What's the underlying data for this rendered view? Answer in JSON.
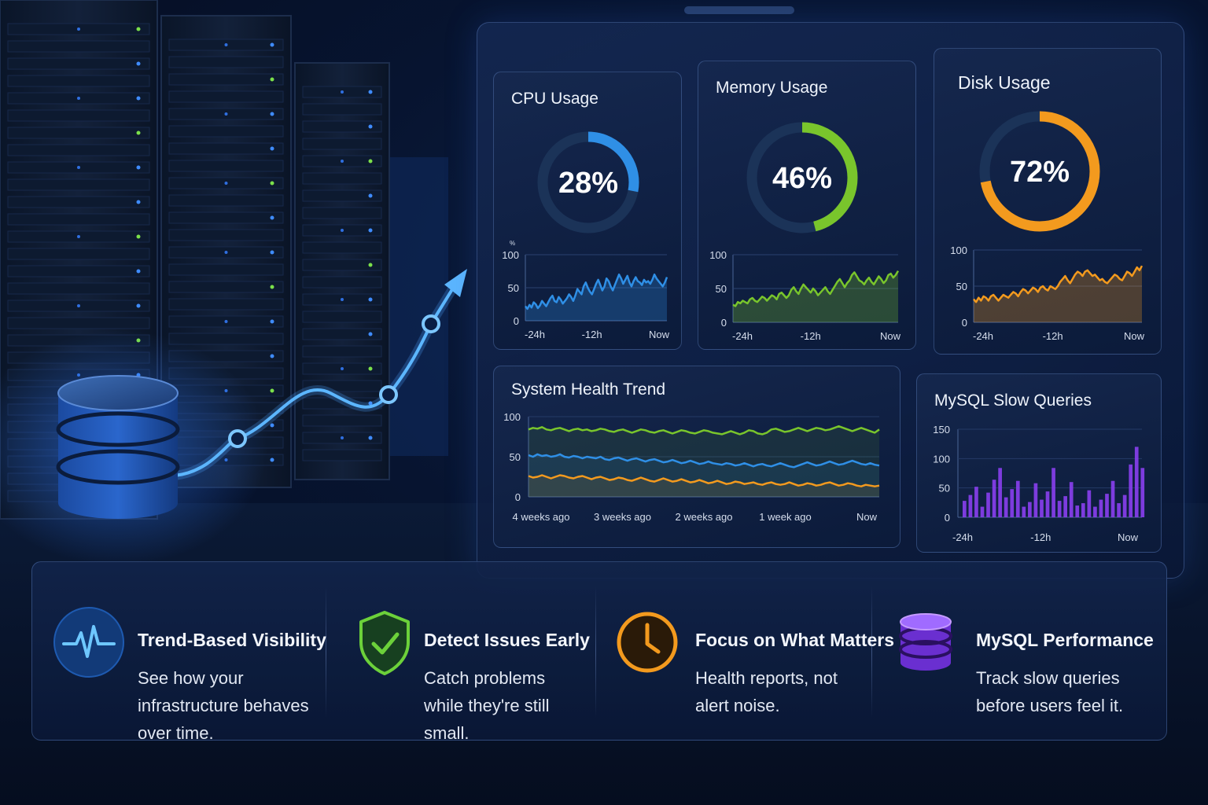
{
  "colors": {
    "cpu": "#2f8fe6",
    "memory": "#79c52c",
    "disk": "#f39a1e",
    "slow_queries": "#8a3ff0",
    "track": "#1b3358"
  },
  "gauges": [
    {
      "id": "cpu",
      "title": "CPU Usage",
      "value_label": "28%",
      "fraction": 0.28,
      "y_ticks": [
        "100",
        "50",
        "0"
      ],
      "x_ticks": [
        "-24h",
        "-12h",
        "Now"
      ],
      "unit_tick": "%",
      "series": [
        22,
        18,
        24,
        20,
        28,
        25,
        19,
        23,
        30,
        26,
        22,
        28,
        34,
        38,
        30,
        28,
        36,
        32,
        26,
        30,
        34,
        40,
        36,
        30,
        38,
        48,
        44,
        40,
        52,
        58,
        50,
        44,
        40,
        48,
        56,
        62,
        54,
        46,
        52,
        64,
        60,
        52,
        46,
        54,
        62,
        70,
        64,
        56,
        62,
        68,
        58,
        52,
        60,
        66,
        60,
        58,
        54,
        62,
        58,
        60,
        56,
        62,
        70,
        64,
        60,
        56,
        52,
        58,
        66
      ]
    },
    {
      "id": "memory",
      "title": "Memory Usage",
      "value_label": "46%",
      "fraction": 0.46,
      "y_ticks": [
        "100",
        "50",
        "0"
      ],
      "x_ticks": [
        "-24h",
        "-12h",
        "Now"
      ],
      "series": [
        26,
        24,
        30,
        28,
        32,
        30,
        28,
        34,
        36,
        32,
        30,
        34,
        38,
        36,
        32,
        36,
        40,
        38,
        34,
        42,
        44,
        40,
        36,
        40,
        48,
        52,
        46,
        42,
        50,
        56,
        52,
        48,
        44,
        50,
        46,
        40,
        44,
        48,
        52,
        46,
        42,
        48,
        54,
        60,
        64,
        58,
        52,
        58,
        62,
        70,
        74,
        68,
        62,
        60,
        56,
        62,
        66,
        60,
        56,
        62,
        68,
        64,
        58,
        62,
        70,
        72,
        66,
        70,
        76
      ]
    },
    {
      "id": "disk",
      "title": "Disk Usage",
      "value_label": "72%",
      "fraction": 0.72,
      "y_ticks": [
        "100",
        "50",
        "0"
      ],
      "x_ticks": [
        "-24h",
        "-12h",
        "Now"
      ],
      "series": [
        32,
        28,
        34,
        30,
        36,
        34,
        30,
        36,
        38,
        34,
        30,
        34,
        38,
        36,
        34,
        38,
        42,
        40,
        36,
        42,
        46,
        44,
        40,
        44,
        48,
        46,
        42,
        48,
        50,
        46,
        44,
        50,
        48,
        46,
        50,
        56,
        60,
        64,
        58,
        54,
        60,
        66,
        70,
        68,
        64,
        70,
        72,
        68,
        64,
        66,
        62,
        58,
        60,
        56,
        54,
        58,
        62,
        66,
        64,
        60,
        58,
        64,
        70,
        68,
        64,
        70,
        76,
        72,
        78
      ]
    },
    {
      "id": "slow",
      "title": "MySQL Slow Queries",
      "y_ticks": [
        "150",
        "100",
        "50",
        "0"
      ],
      "x_ticks": [
        "-24h",
        "-12h",
        "Now"
      ]
    }
  ],
  "system_health": {
    "title": "System Health Trend",
    "y_ticks": [
      "100",
      "50",
      "0"
    ],
    "x_ticks": [
      "4 weeks ago",
      "3 weeks ago",
      "2 weeks ago",
      "1 week ago",
      "Now"
    ],
    "series_green": [
      84,
      86,
      85,
      87,
      84,
      83,
      85,
      86,
      84,
      82,
      84,
      85,
      83,
      84,
      82,
      83,
      85,
      84,
      82,
      81,
      83,
      84,
      82,
      80,
      82,
      84,
      83,
      81,
      80,
      82,
      83,
      81,
      79,
      81,
      83,
      82,
      80,
      79,
      81,
      83,
      82,
      80,
      79,
      78,
      80,
      82,
      80,
      78,
      80,
      83,
      82,
      79,
      78,
      80,
      84,
      85,
      83,
      81,
      82,
      84,
      86,
      84,
      82,
      84,
      86,
      85,
      83,
      84,
      86,
      88,
      86,
      84,
      82,
      84,
      86,
      84,
      82,
      80,
      84
    ],
    "series_blue": [
      52,
      50,
      53,
      51,
      52,
      50,
      51,
      53,
      50,
      49,
      51,
      50,
      48,
      50,
      49,
      48,
      50,
      47,
      46,
      48,
      49,
      47,
      45,
      47,
      48,
      46,
      44,
      46,
      47,
      45,
      43,
      44,
      46,
      44,
      42,
      43,
      45,
      43,
      41,
      42,
      44,
      42,
      41,
      40,
      42,
      41,
      39,
      40,
      42,
      40,
      38,
      40,
      41,
      39,
      38,
      40,
      42,
      40,
      38,
      37,
      39,
      41,
      43,
      41,
      39,
      40,
      42,
      44,
      42,
      40,
      41,
      43,
      45,
      43,
      41,
      40,
      42,
      40,
      39
    ],
    "series_orange": [
      26,
      24,
      25,
      27,
      25,
      23,
      25,
      27,
      26,
      24,
      23,
      25,
      26,
      24,
      22,
      24,
      25,
      23,
      21,
      22,
      24,
      23,
      21,
      20,
      22,
      24,
      22,
      20,
      19,
      21,
      23,
      21,
      19,
      20,
      22,
      20,
      18,
      19,
      21,
      19,
      17,
      18,
      20,
      18,
      16,
      17,
      19,
      18,
      16,
      17,
      18,
      16,
      15,
      17,
      18,
      16,
      15,
      16,
      18,
      16,
      14,
      15,
      17,
      16,
      14,
      15,
      17,
      18,
      16,
      14,
      15,
      17,
      16,
      14,
      13,
      15,
      14,
      13,
      14
    ]
  },
  "slow_queries": {
    "values": [
      28,
      38,
      52,
      18,
      42,
      64,
      84,
      34,
      48,
      62,
      18,
      26,
      58,
      30,
      44,
      84,
      28,
      36,
      60,
      20,
      24,
      46,
      18,
      30,
      40,
      62,
      24,
      38,
      90,
      120,
      84
    ]
  },
  "features": [
    {
      "title": "Trend-Based Visibility",
      "desc": "See how your infrastructure behaves over time.",
      "icon": "pulse-icon"
    },
    {
      "title": "Detect Issues Early",
      "desc": "Catch problems while they're still small.",
      "icon": "shield-check-icon"
    },
    {
      "title": "Focus on What Matters",
      "desc": "Health reports, not alert noise.",
      "icon": "clock-icon"
    },
    {
      "title": "MySQL Performance",
      "desc": "Track slow queries before users feel it.",
      "icon": "database-icon"
    }
  ]
}
